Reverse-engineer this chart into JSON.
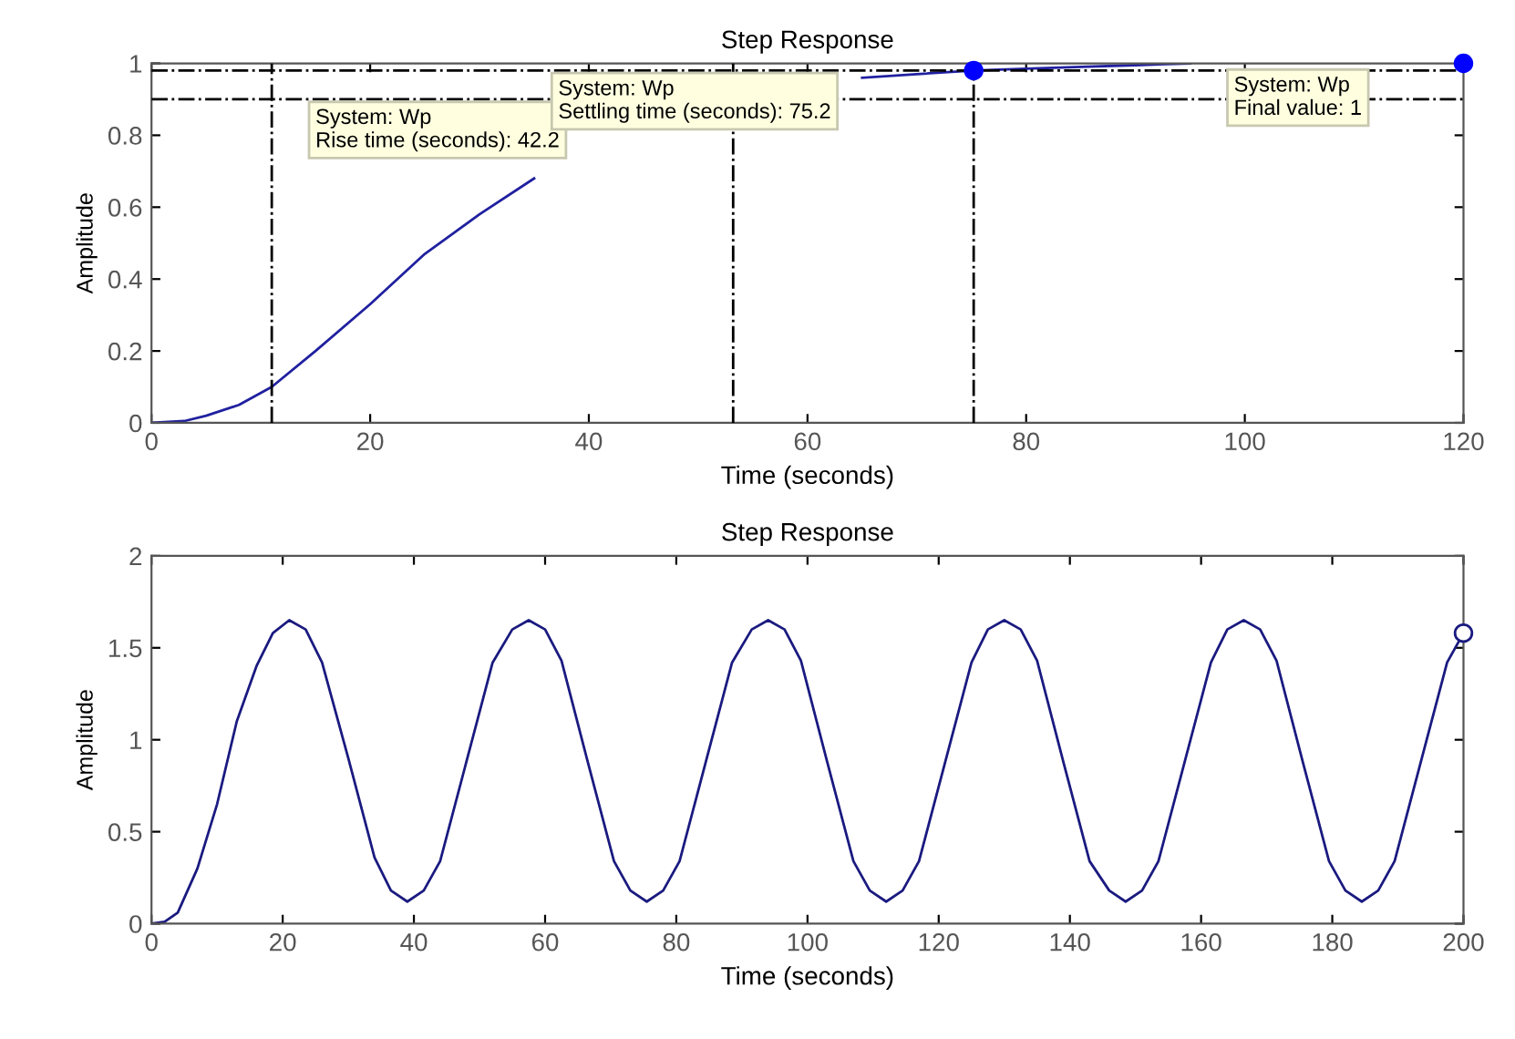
{
  "chart_data": [
    {
      "type": "line",
      "title": "Step Response",
      "xlabel": "Time (seconds)",
      "ylabel": "Amplitude",
      "xlim": [
        0,
        120
      ],
      "xticks": [
        0,
        20,
        40,
        60,
        80,
        100,
        120
      ],
      "ylim": [
        0,
        1
      ],
      "yticks": [
        0,
        0.2,
        0.4,
        0.6,
        0.8,
        1
      ],
      "series": [
        {
          "color": "#2020a0",
          "x": [
            0,
            3,
            5,
            8,
            11,
            15,
            20,
            25,
            30,
            35,
            40,
            45,
            50,
            55,
            60,
            65,
            70,
            75.2,
            80,
            85,
            90,
            95
          ],
          "values": [
            0,
            0.005,
            0.02,
            0.05,
            0.1,
            0.2,
            0.33,
            0.47,
            0.58,
            0.68,
            null,
            null,
            null,
            null,
            null,
            0.96,
            0.97,
            0.98,
            0.985,
            0.99,
            0.995,
            1
          ]
        },
        {
          "type": "scatter",
          "color": "#0000ff",
          "marker": "circle",
          "x": [
            75.2,
            120
          ],
          "values": [
            0.98,
            1
          ]
        }
      ],
      "ref_lines": [
        {
          "axis": "y",
          "value": 0.98,
          "line_style": "dashdot",
          "color": "#000000"
        },
        {
          "axis": "y",
          "value": 0.9,
          "line_style": "dashdot",
          "color": "#000000"
        },
        {
          "axis": "x",
          "value": 11,
          "line_style": "dashdot",
          "color": "#000000"
        },
        {
          "axis": "x",
          "value": 53.2,
          "line_style": "dashdot",
          "color": "#000000"
        },
        {
          "axis": "x",
          "value": 75.2,
          "line_style": "dashdot",
          "color": "#000000"
        }
      ],
      "annotations": [
        "System: Wp\nRise time (seconds): 42.2",
        "System: Wp\nSettling time (seconds): 75.2",
        "System: Wp\nFinal value: 1"
      ]
    },
    {
      "type": "line",
      "title": "Step Response",
      "xlabel": "Time (seconds)",
      "ylabel": "Amplitude",
      "xlim": [
        0,
        200
      ],
      "xticks": [
        0,
        20,
        40,
        60,
        80,
        100,
        120,
        140,
        160,
        180,
        200
      ],
      "ylim": [
        0,
        2
      ],
      "yticks": [
        0,
        0.5,
        1,
        1.5,
        2
      ],
      "series": [
        {
          "color": "#1a1a80",
          "x": [
            0,
            2,
            4,
            7,
            10,
            13,
            16,
            18.5,
            21,
            23.5,
            26,
            30,
            34,
            36.5,
            39,
            41.5,
            44,
            48,
            52,
            55,
            57.5,
            60,
            62.5,
            66.5,
            70.5,
            73,
            75.5,
            78,
            80.5,
            84.5,
            88.5,
            91.5,
            94,
            96.5,
            99,
            103,
            107,
            109.5,
            112,
            114.5,
            117,
            121,
            125,
            127.5,
            130,
            132.5,
            135,
            139,
            143,
            146,
            148.5,
            151,
            153.5,
            157.5,
            161.5,
            164,
            166.5,
            169,
            171.5,
            175.5,
            179.5,
            182,
            184.5,
            187,
            189.5,
            193.5,
            197.5,
            200
          ],
          "values": [
            0,
            0.01,
            0.06,
            0.3,
            0.65,
            1.1,
            1.4,
            1.58,
            1.65,
            1.6,
            1.42,
            0.9,
            0.36,
            0.18,
            0.12,
            0.18,
            0.34,
            0.88,
            1.42,
            1.6,
            1.65,
            1.6,
            1.43,
            0.88,
            0.34,
            0.18,
            0.12,
            0.18,
            0.34,
            0.88,
            1.42,
            1.6,
            1.65,
            1.6,
            1.43,
            0.88,
            0.34,
            0.18,
            0.12,
            0.18,
            0.34,
            0.88,
            1.42,
            1.6,
            1.65,
            1.6,
            1.43,
            0.88,
            0.34,
            0.18,
            0.12,
            0.18,
            0.34,
            0.88,
            1.42,
            1.6,
            1.65,
            1.6,
            1.43,
            0.88,
            0.34,
            0.18,
            0.12,
            0.18,
            0.34,
            0.88,
            1.42,
            1.58
          ]
        },
        {
          "type": "scatter",
          "color": "#1a1a80",
          "marker": "open circle",
          "x": [
            200
          ],
          "values": [
            1.58
          ]
        }
      ]
    }
  ]
}
